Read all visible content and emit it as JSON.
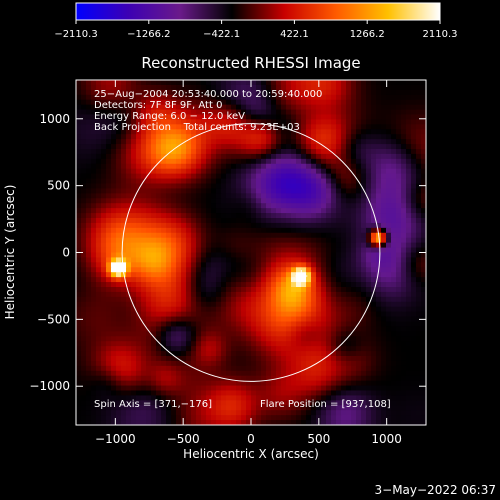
{
  "chart_data": {
    "type": "heatmap",
    "title": "Reconstructed RHESSI Image",
    "xlabel": "Heliocentric X (arcsec)",
    "ylabel": "Heliocentric Y (arcsec)",
    "xlim": [
      -1290,
      1290
    ],
    "ylim": [
      -1290,
      1290
    ],
    "xticks": [
      -1000,
      -500,
      0,
      500,
      1000
    ],
    "xtick_labels": [
      "−1000",
      "−500",
      "0",
      "500",
      "1000"
    ],
    "yticks": [
      -1000,
      -500,
      0,
      500,
      1000
    ],
    "ytick_labels": [
      "−1000",
      "−500",
      "0",
      "500",
      "1000"
    ],
    "colorbar": {
      "min": -2110.3,
      "max": 2110.3,
      "tick_values": [
        -2110.3,
        -1266.2,
        -422.1,
        422.1,
        1266.2,
        2110.3
      ],
      "tick_labels": [
        "−2110.3",
        "−1266.2",
        "−422.1",
        "422.1",
        "1266.2",
        "2110.3"
      ],
      "colors": [
        "#0000ff",
        "#3c00b4",
        "#6a1a8a",
        "#000000",
        "#c80000",
        "#ff5a00",
        "#ffc000",
        "#ffffff"
      ]
    },
    "info_lines": [
      "25−Aug−2004 20:53:40.000 to 20:59:40.000",
      "Detectors: 7F 8F 9F, Att 0",
      "Energy Range: 6.0 − 12.0 keV",
      "Back Projection    Total counts: 9.23E+03"
    ],
    "spin_axis_label": "Spin Axis = [371,−176]",
    "flare_position_label": "Flare Position = [937,108]",
    "spin_axis": [
      371,
      -176
    ],
    "flare_position": [
      937,
      108
    ],
    "solar_disk": {
      "center": [
        0,
        0
      ],
      "radius": 950
    },
    "bright_sources": [
      {
        "x": 937,
        "y": 108,
        "value": 2100
      },
      {
        "x": -980,
        "y": -120,
        "value": 2000
      },
      {
        "x": 371,
        "y": -176,
        "value": 1900
      }
    ],
    "grid": false
  },
  "footer": {
    "timestamp": "3−May−2022 06:37"
  }
}
